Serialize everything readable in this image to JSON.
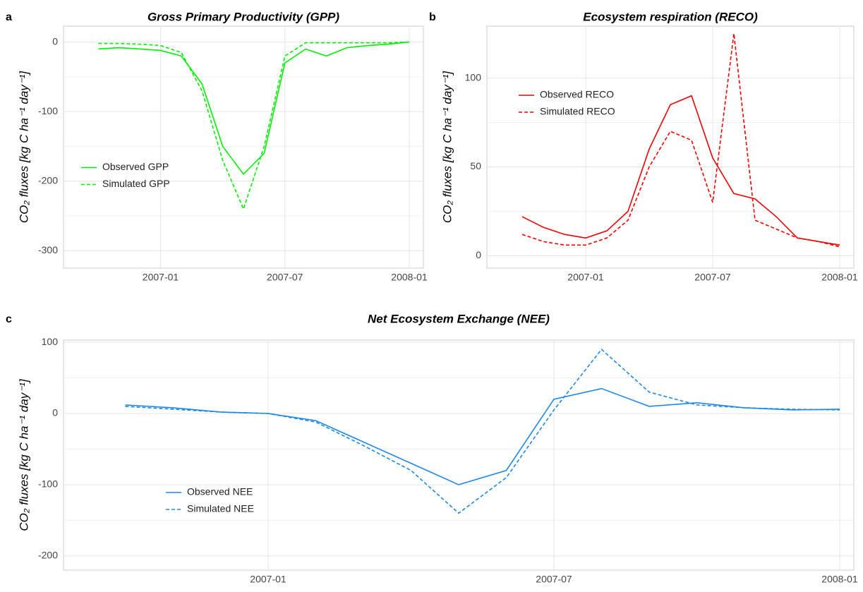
{
  "chart_data": [
    {
      "type": "line",
      "panel_label": "a",
      "title": "Gross Primary Productivity (GPP)",
      "y_label": "CO₂ fluxes [kg C ha⁻¹ day⁻¹]",
      "x": [
        "2006-10",
        "2006-11",
        "2006-12",
        "2007-01",
        "2007-02",
        "2007-03",
        "2007-04",
        "2007-05",
        "2007-06",
        "2007-07",
        "2007-08",
        "2007-09",
        "2007-10",
        "2007-11",
        "2007-12",
        "2008-01"
      ],
      "xlim": [
        "2006-09",
        "2008-01"
      ],
      "xticks": [
        "2007-01",
        "2007-07",
        "2008-01"
      ],
      "ylim": [
        -315,
        25
      ],
      "yticks": [
        -300,
        -200,
        -100,
        0
      ],
      "grid": true,
      "legend_position": "left",
      "series": [
        {
          "name": "Observed GPP",
          "color": "#00ee00",
          "dash": false,
          "values": [
            -10,
            -8,
            -10,
            -12,
            -20,
            -60,
            -150,
            -190,
            -160,
            -30,
            -10,
            -20,
            -8,
            -5,
            -3,
            0
          ]
        },
        {
          "name": "Simulated GPP",
          "color": "#00ee00",
          "dash": true,
          "values": [
            -2,
            -2,
            -3,
            -5,
            -15,
            -70,
            -170,
            -240,
            -150,
            -20,
            -1,
            -1,
            -1,
            -1,
            -1,
            0
          ]
        }
      ]
    },
    {
      "type": "line",
      "panel_label": "b",
      "title": "Ecosystem respiration (RECO)",
      "y_label": "CO₂ fluxes [kg C ha⁻¹ day⁻¹]",
      "x": [
        "2006-10",
        "2006-11",
        "2006-12",
        "2007-01",
        "2007-02",
        "2007-03",
        "2007-04",
        "2007-05",
        "2007-06",
        "2007-07",
        "2007-08",
        "2007-09",
        "2007-10",
        "2007-11",
        "2007-12",
        "2008-01"
      ],
      "xlim": [
        "2006-09",
        "2008-01"
      ],
      "xticks": [
        "2007-01",
        "2007-07",
        "2008-01"
      ],
      "ylim": [
        -3,
        130
      ],
      "yticks": [
        0,
        50,
        100
      ],
      "grid": true,
      "legend_position": "upper left",
      "series": [
        {
          "name": "Observed RECO",
          "color": "#ee0000",
          "dash": false,
          "values": [
            22,
            16,
            12,
            10,
            14,
            25,
            60,
            85,
            90,
            55,
            35,
            32,
            22,
            10,
            8,
            6
          ]
        },
        {
          "name": "Simulated RECO",
          "color": "#ee0000",
          "dash": true,
          "values": [
            12,
            8,
            6,
            6,
            10,
            20,
            50,
            70,
            65,
            30,
            125,
            20,
            15,
            10,
            8,
            5
          ]
        }
      ]
    },
    {
      "type": "line",
      "panel_label": "c",
      "title": "Net Ecosystem Exchange (NEE)",
      "y_label": "CO₂ fluxes [kg C ha⁻¹ day⁻¹]",
      "x": [
        "2006-10",
        "2006-11",
        "2006-12",
        "2007-01",
        "2007-02",
        "2007-03",
        "2007-04",
        "2007-05",
        "2007-06",
        "2007-07",
        "2007-08",
        "2007-09",
        "2007-10",
        "2007-11",
        "2007-12",
        "2008-01"
      ],
      "xlim": [
        "2006-09",
        "2008-01"
      ],
      "xticks": [
        "2007-01",
        "2007-07",
        "2008-01"
      ],
      "ylim": [
        -210,
        105
      ],
      "yticks": [
        -200,
        -100,
        0,
        100
      ],
      "grid": true,
      "legend_position": "lower left",
      "series": [
        {
          "name": "Observed NEE",
          "color": "#1e88e5",
          "dash": false,
          "values": [
            12,
            8,
            2,
            0,
            -10,
            -40,
            -70,
            -100,
            -80,
            20,
            35,
            10,
            15,
            8,
            5,
            6
          ]
        },
        {
          "name": "Simulated NEE",
          "color": "#1e88e5",
          "dash": true,
          "values": [
            10,
            6,
            2,
            0,
            -12,
            -45,
            -80,
            -140,
            -90,
            5,
            90,
            30,
            12,
            8,
            6,
            5
          ]
        }
      ]
    }
  ]
}
